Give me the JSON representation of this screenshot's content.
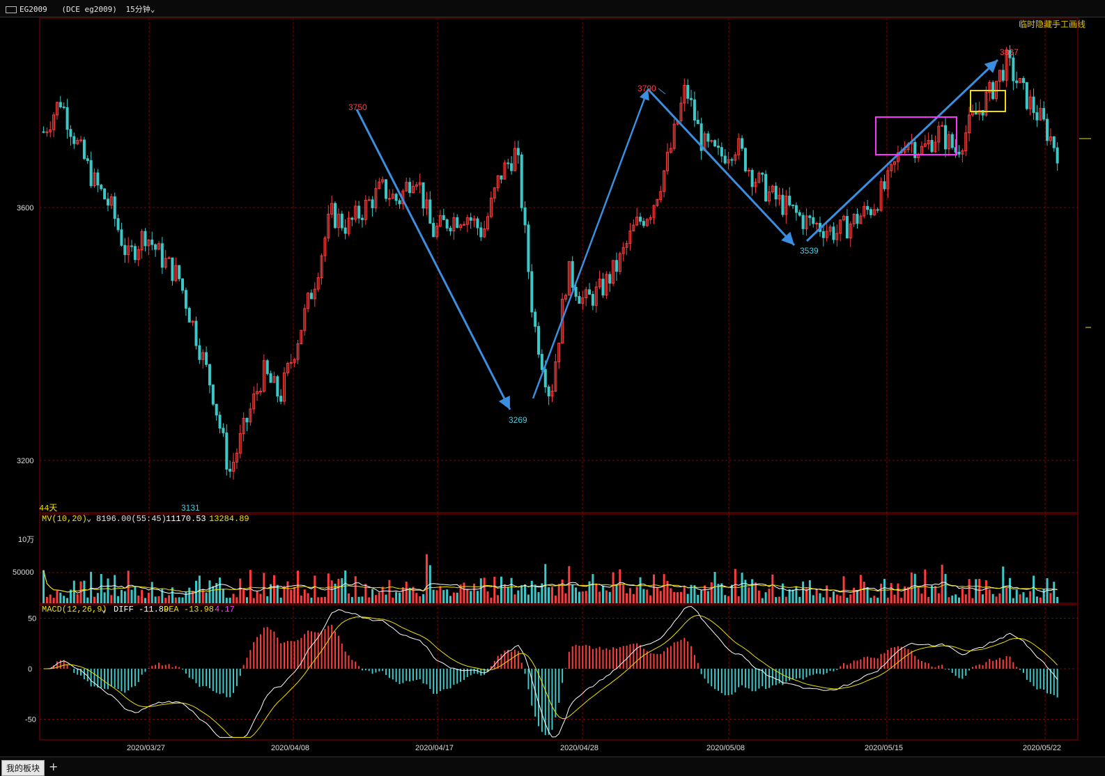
{
  "symbol": "EG2009",
  "exchange_code": "(DCE eg2009)",
  "timeframe": "15分钟",
  "hide_drawing_label": "临时隐藏手工画线",
  "days_label": "44天",
  "mv": {
    "name": "MV(10,20)",
    "value": "8196.00(55:45)",
    "ma10": "11170.53",
    "ma20": "13284.89"
  },
  "macd": {
    "name": "MACD(12,26,9)",
    "diff_label": "DIFF -11.89",
    "dea_label": "DEA -13.98",
    "macd_value": "4.17"
  },
  "volume_unit_label": "10万",
  "colors": {
    "up": "#ff3c3c",
    "down": "#3cc8c8",
    "arrow": "#3b8fe0",
    "grid": "#8b0000",
    "yellow": "#f0e000",
    "white": "#ffffff",
    "magenta": "#ff33ff"
  },
  "tabs": {
    "my_sector": "我的板块",
    "add": "+"
  },
  "chart_data": {
    "type": "candlestick",
    "x_dates": [
      "2020/03/27",
      "2020/04/08",
      "2020/04/17",
      "2020/04/28",
      "2020/05/08",
      "2020/05/15",
      "2020/05/22"
    ],
    "price_ticks": [
      3600,
      3200
    ],
    "volume_ticks": [
      "10万",
      "50000"
    ],
    "macd_ticks": [
      50,
      0,
      -50
    ],
    "annotations": [
      {
        "label": "3750",
        "type": "high"
      },
      {
        "label": "3269",
        "type": "low"
      },
      {
        "label": "3790",
        "type": "high"
      },
      {
        "label": "3539",
        "type": "low"
      },
      {
        "label": "3837",
        "type": "high"
      },
      {
        "label": "3131",
        "type": "low"
      }
    ],
    "price_path": [
      [
        0,
        3720
      ],
      [
        1,
        3770
      ],
      [
        2,
        3700
      ],
      [
        3,
        3640
      ],
      [
        4,
        3600
      ],
      [
        5,
        3520
      ],
      [
        6,
        3560
      ],
      [
        7,
        3520
      ],
      [
        8,
        3490
      ],
      [
        9,
        3400
      ],
      [
        10,
        3310
      ],
      [
        11,
        3180
      ],
      [
        12,
        3260
      ],
      [
        13,
        3340
      ],
      [
        14,
        3300
      ],
      [
        15,
        3390
      ],
      [
        16,
        3480
      ],
      [
        17,
        3590
      ],
      [
        18,
        3570
      ],
      [
        19,
        3600
      ],
      [
        20,
        3630
      ],
      [
        21,
        3610
      ],
      [
        22,
        3660
      ],
      [
        23,
        3560
      ],
      [
        24,
        3580
      ],
      [
        25,
        3590
      ],
      [
        26,
        3560
      ],
      [
        27,
        3650
      ],
      [
        28,
        3690
      ],
      [
        29,
        3420
      ],
      [
        30,
        3300
      ],
      [
        31,
        3500
      ],
      [
        32,
        3450
      ],
      [
        33,
        3470
      ],
      [
        34,
        3510
      ],
      [
        35,
        3570
      ],
      [
        36,
        3600
      ],
      [
        37,
        3680
      ],
      [
        38,
        3790
      ],
      [
        39,
        3700
      ],
      [
        40,
        3680
      ],
      [
        41,
        3700
      ],
      [
        42,
        3650
      ],
      [
        43,
        3620
      ],
      [
        44,
        3600
      ],
      [
        45,
        3580
      ],
      [
        46,
        3570
      ],
      [
        47,
        3560
      ],
      [
        48,
        3580
      ],
      [
        49,
        3600
      ],
      [
        50,
        3640
      ],
      [
        51,
        3710
      ],
      [
        52,
        3690
      ],
      [
        53,
        3720
      ],
      [
        54,
        3690
      ],
      [
        55,
        3740
      ],
      [
        56,
        3780
      ],
      [
        57,
        3830
      ],
      [
        58,
        3780
      ],
      [
        59,
        3740
      ],
      [
        60,
        3690
      ]
    ]
  }
}
